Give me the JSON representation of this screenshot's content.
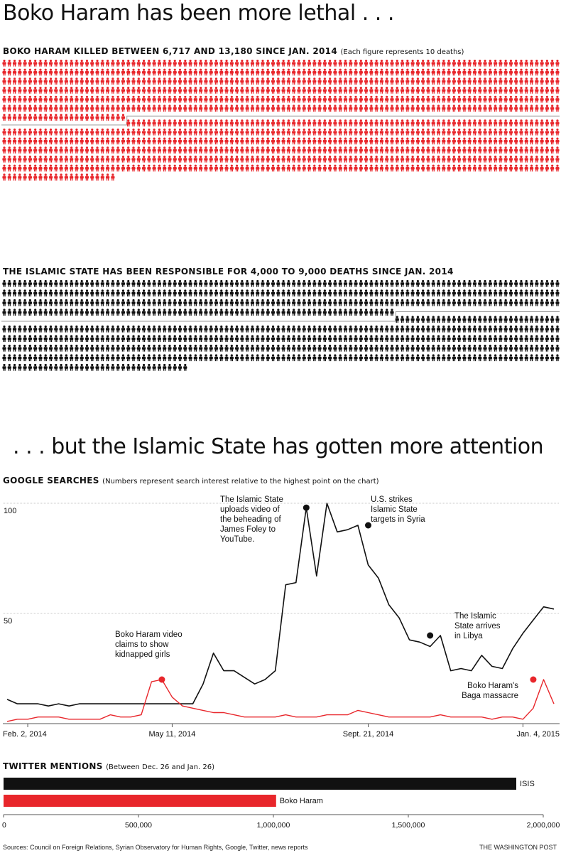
{
  "headline_1": "Boko Haram has been more lethal . . .",
  "boko_section": {
    "title": "BOKO HARAM KILLED BETWEEN 6,717 AND 13,180 SINCE JAN. 2014",
    "note": "(Each figure represents 10 deaths)",
    "color": "#e8262b"
  },
  "isis_section": {
    "title": "THE ISLAMIC STATE HAS BEEN RESPONSIBLE FOR 4,000 TO 9,000 DEATHS SINCE JAN. 2014",
    "color": "#111111"
  },
  "headline_2": ". . . but the Islamic State has gotten more attention",
  "google_section": {
    "title": "GOOGLE SEARCHES",
    "note": "(Numbers represent search interest relative to the highest point on the chart)"
  },
  "twitter_section": {
    "title": "TWITTER MENTIONS",
    "note": "(Between Dec. 26 and Jan. 26)"
  },
  "footer": {
    "sources": "Sources: Council on Foreign Relations, Syrian Observatory for Human Rights, Google, Twitter, news reports",
    "credit": "THE WASHINGTON POST"
  },
  "chart_data": [
    {
      "type": "pictogram",
      "title": "BOKO HARAM KILLED BETWEEN 6,717 AND 13,180 SINCE JAN. 2014",
      "unit": "Each figure represents 10 deaths",
      "low_estimate": 6717,
      "high_estimate": 13180,
      "figure_value": 10,
      "color": "#e8262b"
    },
    {
      "type": "pictogram",
      "title": "THE ISLAMIC STATE HAS BEEN RESPONSIBLE FOR 4,000 TO 9,000 DEATHS SINCE JAN. 2014",
      "unit": "Each figure represents 10 deaths",
      "low_estimate": 4000,
      "high_estimate": 9000,
      "figure_value": 10,
      "color": "#111111"
    },
    {
      "type": "line",
      "title": "GOOGLE SEARCHES",
      "x": [
        "2014-01-19",
        "2014-01-26",
        "2014-02-02",
        "2014-02-09",
        "2014-02-16",
        "2014-02-23",
        "2014-03-02",
        "2014-03-09",
        "2014-03-16",
        "2014-03-23",
        "2014-03-30",
        "2014-04-06",
        "2014-04-13",
        "2014-04-20",
        "2014-04-27",
        "2014-05-04",
        "2014-05-11",
        "2014-05-18",
        "2014-05-25",
        "2014-06-01",
        "2014-06-08",
        "2014-06-15",
        "2014-06-22",
        "2014-06-29",
        "2014-07-06",
        "2014-07-13",
        "2014-07-20",
        "2014-07-27",
        "2014-08-03",
        "2014-08-10",
        "2014-08-17",
        "2014-08-24",
        "2014-08-31",
        "2014-09-07",
        "2014-09-14",
        "2014-09-21",
        "2014-09-28",
        "2014-10-05",
        "2014-10-12",
        "2014-10-19",
        "2014-10-26",
        "2014-11-02",
        "2014-11-09",
        "2014-11-16",
        "2014-11-23",
        "2014-11-30",
        "2014-12-07",
        "2014-12-14",
        "2014-12-21",
        "2014-12-28",
        "2015-01-04",
        "2015-01-11",
        "2015-01-18",
        "2015-01-25"
      ],
      "xticks": [
        "Feb. 2, 2014",
        "May 11, 2014",
        "Sept. 21, 2014",
        "Jan. 4, 2015"
      ],
      "yticks": [
        "50",
        "100"
      ],
      "ylim": [
        0,
        103
      ],
      "series": [
        {
          "name": "",
          "color": "#111111",
          "values": [
            11,
            9,
            9,
            9,
            8,
            9,
            8,
            9,
            9,
            9,
            9,
            9,
            9,
            9,
            9,
            9,
            9,
            9,
            9,
            18,
            32,
            24,
            24,
            21,
            18,
            20,
            24,
            63,
            64,
            98,
            67,
            100,
            87,
            88,
            90,
            72,
            66,
            54,
            48,
            38,
            37,
            35,
            40,
            24,
            25,
            24,
            31,
            26,
            25,
            34,
            41,
            47,
            53,
            52
          ]
        },
        {
          "name": "",
          "color": "#e8262b",
          "values": [
            1,
            2,
            2,
            3,
            3,
            3,
            2,
            2,
            2,
            2,
            4,
            3,
            3,
            4,
            19,
            20,
            12,
            8,
            7,
            6,
            5,
            5,
            4,
            3,
            3,
            3,
            3,
            4,
            3,
            3,
            3,
            4,
            4,
            4,
            6,
            5,
            4,
            3,
            3,
            3,
            3,
            3,
            4,
            3,
            3,
            3,
            3,
            2,
            3,
            3,
            2,
            7,
            20,
            9
          ]
        }
      ],
      "annotations": [
        {
          "text": "Boko Haram video claims to show kidnapped girls",
          "series": 1,
          "x": "2014-05-04",
          "y": 20
        },
        {
          "text": "The Islamic State uploads video of the beheading of James Foley to YouTube.",
          "series": 0,
          "x": "2014-08-10",
          "y": 98
        },
        {
          "text": "U.S. strikes Islamic State targets in Syria",
          "series": 0,
          "x": "2014-09-21",
          "y": 90
        },
        {
          "text": "The Islamic State arrives in Libya",
          "series": 0,
          "x": "2014-11-02",
          "y": 40
        },
        {
          "text": "Boko Haram's Baga massacre",
          "series": 1,
          "x": "2015-01-11",
          "y": 20
        }
      ]
    },
    {
      "type": "bar",
      "title": "TWITTER MENTIONS",
      "orientation": "horizontal",
      "categories": [
        "ISIS",
        "Boko Haram"
      ],
      "values": [
        1900000,
        1010000
      ],
      "colors": [
        "#111111",
        "#e8262b"
      ],
      "xlim": [
        0,
        2000000
      ],
      "xticks": [
        "0",
        "500,000",
        "1,000,000",
        "1,500,000",
        "2,000,000"
      ],
      "xtick_values": [
        0,
        500000,
        1000000,
        1500000,
        2000000
      ]
    }
  ]
}
